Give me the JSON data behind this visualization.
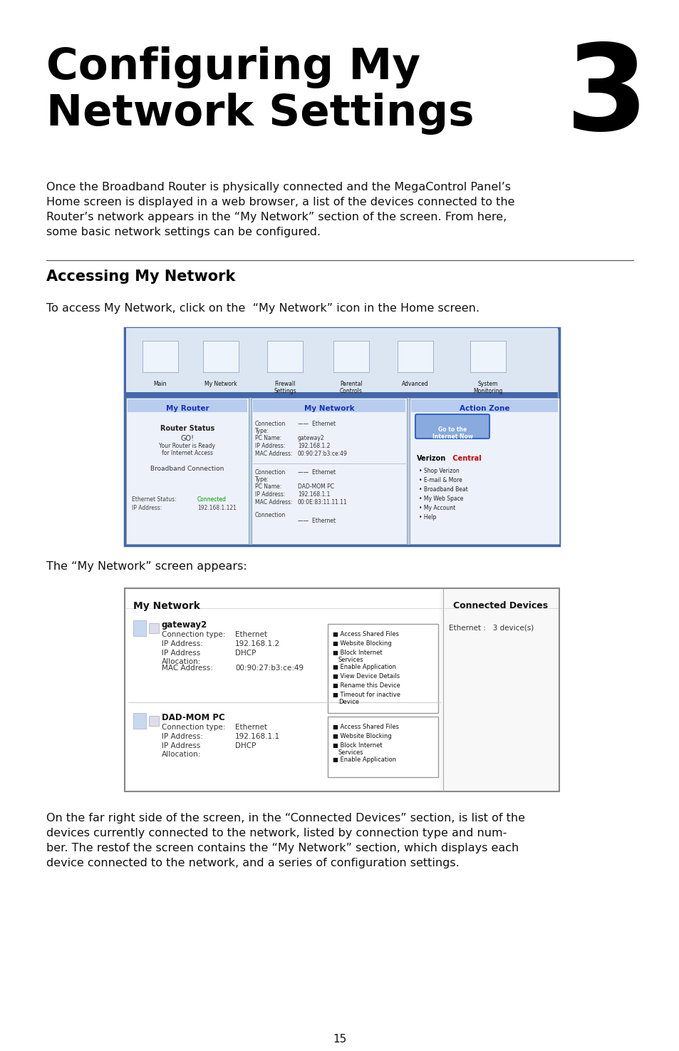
{
  "title_line1": "Configuring My",
  "title_line2": "Network Settings",
  "chapter_num": "3",
  "body_text_lines": [
    "Once the Broadband Router is physically connected and the MegaControl Panel’s",
    "Home screen is displayed in a web browser, a list of the devices connected to the",
    "Router’s network appears in the “My Network” section of the screen. From here,",
    "some basic network settings can be configured."
  ],
  "section_title": "Accessing My Network",
  "section_text": "To access My Network, click on the  “My Network” icon in the Home screen.",
  "section_text2": "The “My Network” screen appears:",
  "footer_page": "15",
  "bottom_text_lines": [
    "On the far right side of the screen, in the “Connected Devices” section, is list of the",
    "devices currently connected to the network, listed by connection type and num-",
    "ber. The restof the screen contains the “My Network” section, which displays each",
    "device connected to the network, and a series of configuration settings."
  ],
  "bg_color": "#ffffff",
  "title_color": "#000000",
  "body_color": "#111111",
  "section_title_color": "#000000",
  "nav_items": [
    "Main",
    "My Network",
    "Firewall\nSettings",
    "Parental\nControls",
    "Advanced",
    "System\nMonitoring"
  ],
  "panel_headers": [
    "My Router",
    "My Network",
    "Action Zone"
  ],
  "vz_items": [
    "Shop Verizon",
    "E-mail & More",
    "Broadband Beat",
    "My Web Space",
    "My Account",
    "Help"
  ],
  "gw_opts": [
    "Access Shared Files",
    "Website Blocking",
    "Block Internet\nServices",
    "Enable Application",
    "View Device Details",
    "Rename this Device",
    "Timeout for inactive\nDevice"
  ],
  "dad_opts": [
    "Access Shared Files",
    "Website Blocking",
    "Block Internet\nServices",
    "Enable Application"
  ]
}
